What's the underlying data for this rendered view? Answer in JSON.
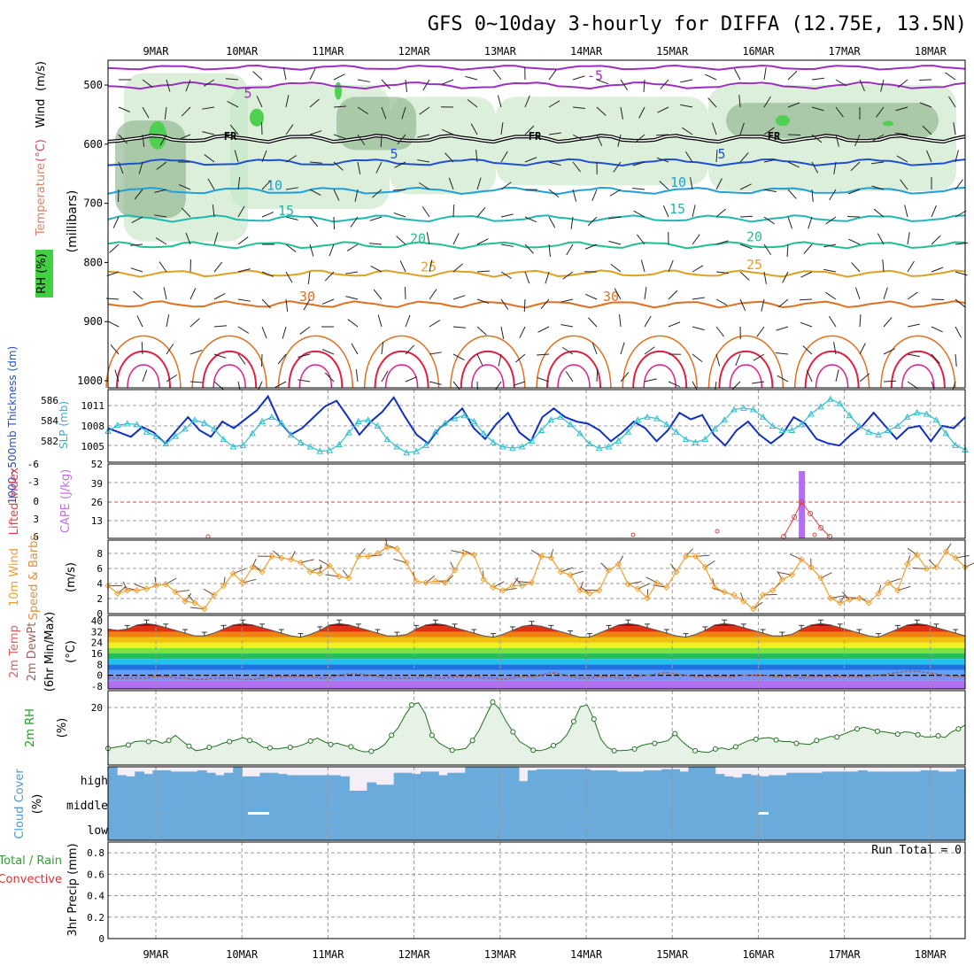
{
  "page": {
    "title": "GFS 0~10day 3-hourly for DIFFA (12.75E, 13.5N)"
  },
  "chart_data": [
    {
      "id": "upper-air",
      "type": "heatmap",
      "ylabel": "(millibars)",
      "y_ticks": [
        "500",
        "600",
        "700",
        "800",
        "900",
        "1000"
      ],
      "side_labels": [
        "RH (%)",
        "Temperature",
        "(°C)",
        "Wind",
        "(m/s)"
      ],
      "freezing_label": "FR",
      "contour_labels": [
        "-5",
        "5",
        "10",
        "15",
        "20",
        "25",
        "30"
      ],
      "levels": [
        500,
        600,
        700,
        800,
        900,
        1000
      ],
      "isotherms": [
        {
          "label": "-5",
          "mb": 500
        },
        {
          "label": "5",
          "mb": 630
        },
        {
          "label": "10",
          "mb": 678
        },
        {
          "label": "15",
          "mb": 725
        },
        {
          "label": "20",
          "mb": 770
        },
        {
          "label": "25",
          "mb": 818
        },
        {
          "label": "30",
          "mb": 870
        }
      ],
      "freezing_level_mb": 590,
      "colors": {
        "cold": "#9b30c0",
        "fr": "#000000",
        "t5": "#2050d0",
        "t10": "#20a0d8",
        "t15": "#20b8b0",
        "t20": "#20c090",
        "t25": "#e0a020",
        "t30": "#e07020",
        "t35": "#e02040",
        "rh": "#c8e6c8",
        "rh_mid": "#8fb48f",
        "rh_dark": "#5a7a5a",
        "rh_green": "#50d050"
      }
    },
    {
      "id": "thickness-slp",
      "type": "line",
      "ylabel_left": "1000~500mb Thickness (dm)",
      "ylabel_right": "SLP (mb)",
      "left_ticks": [
        "586",
        "584",
        "582"
      ],
      "right_ticks": [
        "1011",
        "1008",
        "1005"
      ],
      "series": [
        {
          "name": "1000~500mb Thickness (dm)",
          "color": "#1030c0",
          "values": [
            583.6,
            583.2,
            582.8,
            583.7,
            583.2,
            582.2,
            583.4,
            584.6,
            583.4,
            582.8,
            584.2,
            583.6,
            584.4,
            585.2,
            586.5,
            584.2,
            583.0,
            583.6,
            584.6,
            585.6,
            586.1,
            584.6,
            583.0,
            584.2,
            585.1,
            586.4,
            584.6,
            583.0,
            582.2,
            583.6,
            584.4,
            585.4,
            583.6,
            582.6,
            584.0,
            585.0,
            583.2,
            582.4,
            584.6,
            585.4,
            584.6,
            584.2,
            584.0,
            583.4,
            582.4,
            583.2,
            584.2,
            583.6,
            582.4,
            583.4,
            585.0,
            584.4,
            584.8,
            583.0,
            582.0,
            583.4,
            584.2,
            583.0,
            582.2,
            583.0,
            584.6,
            584.0,
            582.6,
            582.2,
            582.0,
            583.0,
            583.8,
            585.0,
            583.8,
            582.6,
            583.6,
            583.8,
            582.4,
            583.8,
            583.6,
            584.6
          ]
        },
        {
          "name": "SLP (mb)",
          "color": "#30c0d0",
          "values": [
            1007.5,
            1008.3,
            1008.5,
            1008.4,
            1007.4,
            1006.8,
            1005.8,
            1006.8,
            1007.8,
            1009.0,
            1008.6,
            1007.8,
            1006.4,
            1005.4,
            1005.6,
            1007.2,
            1008.8,
            1009.4,
            1008.6,
            1007.0,
            1006.0,
            1005.4,
            1004.8,
            1004.9,
            1005.7,
            1007.3,
            1008.8,
            1009.0,
            1008.2,
            1006.4,
            1005.4,
            1004.6,
            1004.8,
            1005.6,
            1007.4,
            1008.6,
            1009.2,
            1009.6,
            1008.8,
            1007.2,
            1006.0,
            1005.4,
            1005.2,
            1005.4,
            1006.2,
            1007.6,
            1009.0,
            1009.4,
            1008.4,
            1007.2,
            1005.8,
            1005.2,
            1005.4,
            1006.2,
            1007.4,
            1009.0,
            1009.4,
            1009.2,
            1008.4,
            1007.4,
            1006.4,
            1006.0,
            1006.4,
            1007.8,
            1009.0,
            1010.4,
            1010.6,
            1010.4,
            1009.4,
            1008.2,
            1007.6,
            1007.6,
            1008.4,
            1009.8,
            1010.8,
            1011.8,
            1011.2,
            1009.6,
            1008.2,
            1007.4,
            1007.0,
            1007.6,
            1008.2,
            1009.4,
            1010.0,
            1009.8,
            1009.0,
            1007.2,
            1005.6,
            1005.0
          ]
        }
      ]
    },
    {
      "id": "li-cape",
      "type": "bar",
      "ylabel_left": "Lifted Index",
      "ylabel_right": "CAPE (J/kg)",
      "li_ticks": [
        "-6",
        "-3",
        "0",
        "3",
        "6"
      ],
      "cape_ticks": [
        "52",
        "39",
        "26",
        "13"
      ],
      "ylim_li": [
        6,
        -6
      ],
      "ylim_cape": [
        0,
        52
      ],
      "cape_spike": {
        "time_step": 72,
        "value": 52
      },
      "li_peak": {
        "time_step": 72,
        "value": 0
      },
      "colors": {
        "li": "#e04040",
        "cape": "#b070f0",
        "zero": "#e04040"
      }
    },
    {
      "id": "wind10m",
      "type": "line",
      "ylabel_left": "10m Wind",
      "ylabel_right": "Speed & Barbs",
      "yunit": "(m/s)",
      "ticks": [
        "8",
        "6",
        "4",
        "2",
        "0"
      ],
      "ylim": [
        0,
        9.5
      ],
      "series": [
        {
          "name": "10m Wind Speed",
          "color": "#f0a030",
          "values": [
            3.6,
            2.6,
            3.0,
            3.0,
            3.2,
            3.6,
            3.8,
            2.8,
            1.6,
            1.4,
            0.6,
            2.4,
            3.6,
            5.2,
            4.0,
            6.0,
            5.4,
            7.4,
            7.2,
            7.0,
            6.6,
            5.4,
            5.2,
            6.2,
            4.8,
            4.6,
            7.4,
            7.4,
            7.8,
            8.6,
            8.4,
            6.6,
            4.2,
            4.0,
            4.2,
            4.0,
            5.6,
            7.8,
            7.6,
            4.4,
            3.4,
            3.0,
            3.6,
            3.6,
            4.0,
            7.4,
            7.2,
            5.4,
            5.0,
            3.0,
            2.6,
            3.0,
            5.6,
            6.4,
            3.8,
            3.2,
            2.0,
            4.0,
            3.4,
            5.4,
            7.4,
            7.4,
            6.0,
            3.4,
            2.8,
            2.4,
            1.6,
            0.6,
            2.4,
            3.0,
            4.4,
            5.0,
            7.0,
            6.0,
            4.6,
            2.0,
            1.4,
            1.8,
            2.0,
            1.4,
            2.6,
            4.0,
            3.0,
            6.4,
            7.6,
            5.8,
            6.0,
            8.0,
            7.2,
            6.0
          ]
        }
      ]
    },
    {
      "id": "temp2m",
      "type": "area",
      "ylabel_left": "2m Temp",
      "ylabel_mid": "2m DewPt",
      "ylabel_right": "(6hr Min/Max)",
      "yunit": "(°C)",
      "ticks": [
        "40",
        "32",
        "24",
        "16",
        "8",
        "0",
        "-8"
      ],
      "ylim": [
        -10,
        44
      ],
      "temp_values": [
        34,
        33,
        34,
        37,
        38,
        37,
        35,
        33,
        31,
        29,
        29,
        31,
        34,
        37,
        38,
        37,
        35,
        33,
        31,
        29,
        28,
        30,
        33,
        37,
        38,
        37,
        35,
        33,
        31,
        29,
        29,
        30,
        34,
        37,
        38,
        37,
        35,
        33,
        31,
        29,
        28,
        30,
        33,
        36,
        37,
        36,
        34,
        32,
        30,
        28,
        28,
        31,
        34,
        37,
        38,
        37,
        35,
        33,
        31,
        29,
        28,
        30,
        33,
        37,
        38,
        37,
        35,
        33,
        31,
        29,
        29,
        30,
        34,
        37,
        38,
        37,
        35,
        33,
        31,
        29,
        28,
        31,
        34,
        37,
        38,
        37,
        35,
        33,
        31,
        29
      ],
      "dew_values": [
        -2,
        -2,
        -2,
        -2,
        -2,
        -1,
        -1,
        -2,
        -2,
        -3,
        -3,
        -2,
        -2,
        -2,
        -3,
        -3,
        -2,
        -1,
        -1,
        -1,
        -1,
        -1,
        -2,
        -2,
        0,
        1,
        1,
        0,
        -1,
        -2,
        -2,
        -2,
        -2,
        -1,
        -2,
        -2,
        -1,
        -1,
        -1,
        -2,
        -2,
        -3,
        -2,
        -1,
        -1,
        0,
        2,
        1,
        -1,
        -2,
        -2,
        -1,
        -1,
        -2,
        -2,
        -1,
        0,
        1,
        2,
        1,
        0,
        -1,
        -1,
        -1,
        -1,
        -1,
        0,
        0,
        0,
        -1,
        -1,
        -1,
        -2,
        -1,
        -1,
        -1,
        -1,
        -1,
        -1,
        -1,
        0,
        1,
        2,
        3,
        3,
        2,
        1,
        0,
        -1,
        -1
      ],
      "colors": {
        "dew": "#a06060",
        "zero": "#000000"
      }
    },
    {
      "id": "rh2m",
      "type": "line",
      "ylabel_left": "2m RH",
      "yunit": "(%)",
      "ticks": [
        "20"
      ],
      "ylim": [
        0,
        26
      ],
      "series": [
        {
          "name": "2m RH",
          "color": "#207020",
          "values": [
            5.8,
            6.2,
            6.6,
            7.0,
            8.2,
            8.4,
            8.2,
            8.6,
            7.6,
            8.6,
            10.4,
            8.4,
            6.6,
            5.0,
            5.4,
            6.2,
            6.6,
            7.6,
            8.2,
            8.8,
            9.6,
            8.6,
            7.8,
            6.2,
            6.0,
            5.6,
            6.0,
            6.2,
            6.4,
            7.2,
            8.4,
            9.4,
            8.2,
            7.2,
            7.6,
            6.8,
            6.4,
            5.2,
            4.6,
            4.8,
            5.6,
            7.2,
            10.4,
            13.0,
            17.4,
            21.0,
            21.8,
            18.0,
            10.4,
            7.8,
            6.4,
            5.2,
            5.4,
            5.8,
            8.6,
            12.2,
            17.2,
            22.0,
            19.6,
            15.2,
            11.6,
            8.2,
            6.8,
            5.2,
            5.0,
            5.6,
            6.8,
            8.0,
            10.6,
            15.2,
            20.4,
            21.0,
            16.0,
            9.2,
            6.2,
            5.0,
            5.0,
            5.2,
            5.6,
            6.8,
            7.4,
            7.6,
            8.0,
            8.6,
            11.0,
            8.4,
            6.4,
            5.0,
            4.6,
            4.4,
            5.6,
            6.0,
            5.4,
            6.4,
            7.6,
            8.6,
            9.0,
            9.4,
            9.6,
            8.8,
            8.2,
            8.2,
            7.6,
            7.4,
            7.2,
            8.6,
            9.2,
            10.0,
            9.8,
            10.8,
            11.8,
            12.6,
            13.2,
            12.6,
            11.8,
            11.6,
            11.2,
            10.8,
            11.6,
            11.4,
            10.6,
            9.8,
            9.8,
            10.2,
            9.6,
            11.6,
            12.6,
            14.0
          ]
        }
      ]
    },
    {
      "id": "cloud",
      "type": "bar",
      "ylabel_left": "Cloud Cover",
      "yunit": "(%)",
      "rows": [
        "high",
        "middle",
        "low"
      ],
      "high": [
        100,
        65,
        60,
        80,
        70,
        85,
        85,
        80,
        80,
        80,
        85,
        75,
        65,
        75,
        100,
        60,
        60,
        75,
        75,
        70,
        65,
        65,
        65,
        65,
        65,
        65,
        60,
        0,
        0,
        35,
        25,
        25,
        75,
        75,
        70,
        80,
        80,
        65,
        75,
        75,
        100,
        100,
        100,
        100,
        100,
        100,
        40,
        85,
        90,
        90,
        90,
        90,
        90,
        90,
        85,
        85,
        85,
        80,
        80,
        80,
        85,
        85,
        90,
        90,
        80,
        100,
        100,
        100,
        70,
        60,
        55,
        70,
        65,
        60,
        65,
        65,
        75,
        75,
        75,
        75,
        80,
        80,
        80,
        80,
        85,
        80,
        80,
        80,
        80,
        80,
        80,
        85,
        85,
        80,
        80,
        90
      ],
      "color": "#6aabdb"
    },
    {
      "id": "precip",
      "type": "bar",
      "ylabel_left": "Total / Rain",
      "ylabel_right": "Convective",
      "ylabel_unit": "3hr Precip (mm)",
      "run_total": "Run Total = 0",
      "ticks": [
        "0.8",
        "0.6",
        "0.4",
        "0.2",
        "0"
      ],
      "ylim": [
        0,
        0.9
      ],
      "values": []
    }
  ],
  "time_axis": {
    "labels": [
      "9MAR",
      "10MAR",
      "11MAR",
      "12MAR",
      "13MAR",
      "14MAR",
      "15MAR",
      "16MAR",
      "17MAR",
      "18MAR"
    ]
  }
}
